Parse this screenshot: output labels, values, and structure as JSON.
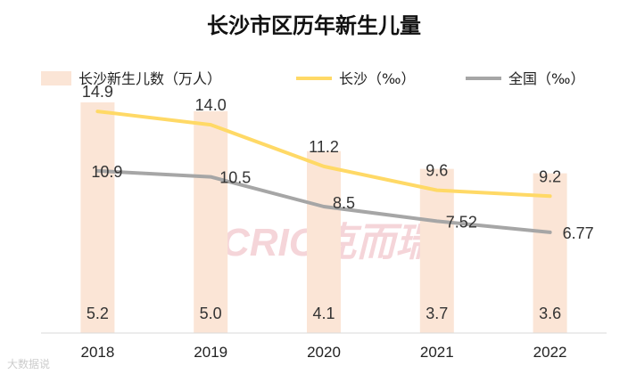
{
  "chart_data": {
    "type": "bar+line",
    "title": "长沙市区历年新生儿量",
    "categories": [
      "2018",
      "2019",
      "2020",
      "2021",
      "2022"
    ],
    "bar_series": {
      "name": "长沙新生儿数（万人）",
      "values": [
        5.2,
        5.0,
        4.1,
        3.7,
        3.6
      ],
      "color": "#fbe5d6",
      "labels": [
        "5.2",
        "5.0",
        "4.1",
        "3.7",
        "3.6"
      ]
    },
    "line_series": [
      {
        "name": "长沙（‰）",
        "values": [
          14.9,
          14.0,
          11.2,
          9.6,
          9.2
        ],
        "labels": [
          "14.9",
          "14.0",
          "11.2",
          "9.6",
          "9.2"
        ],
        "color": "#ffd966"
      },
      {
        "name": "全国（‰）",
        "values": [
          10.9,
          10.5,
          8.5,
          7.52,
          6.77
        ],
        "labels": [
          "10.9",
          "10.5",
          "8.5",
          "7.52",
          "6.77"
        ],
        "color": "#a6a6a6"
      }
    ],
    "bar_ylim": [
      0,
      5.7
    ],
    "line_ylim": [
      0,
      17
    ],
    "legend_position": "top",
    "grid": false
  },
  "watermark": {
    "text": "CRIC克而瑞",
    "color": "#f2c7cd"
  },
  "source_mark": "大数据说"
}
